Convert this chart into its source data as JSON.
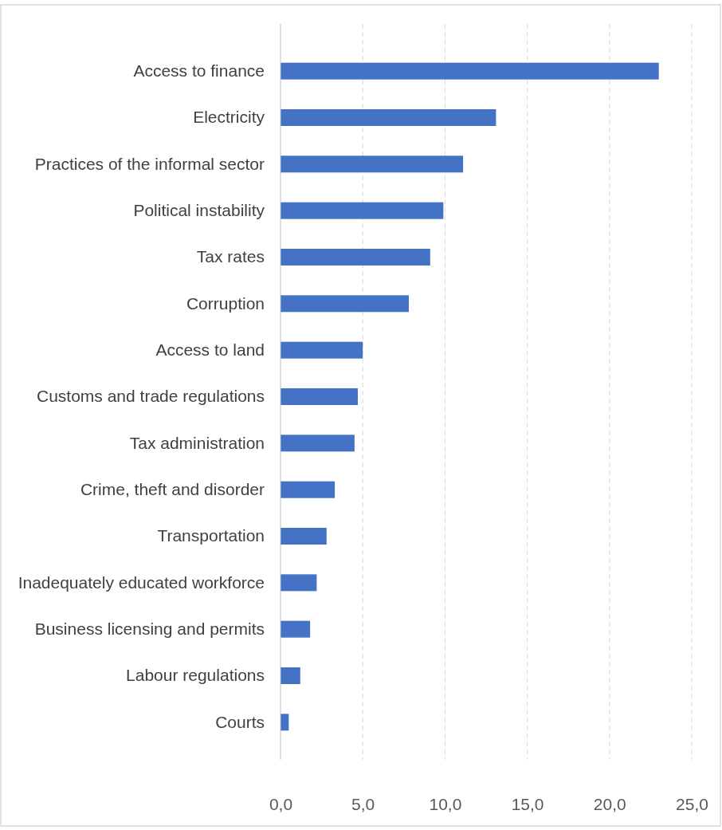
{
  "chart_data": {
    "type": "bar",
    "orientation": "horizontal",
    "categories": [
      "Access to finance",
      "Electricity",
      "Practices of the informal sector",
      "Political instability",
      "Tax rates",
      "Corruption",
      "Access to land",
      "Customs and trade regulations",
      "Tax administration",
      "Crime, theft and disorder",
      "Transportation",
      "Inadequately educated workforce",
      "Business licensing and permits",
      "Labour regulations",
      "Courts"
    ],
    "values": [
      23.0,
      13.1,
      11.1,
      9.9,
      9.1,
      7.8,
      5.0,
      4.7,
      4.5,
      3.3,
      2.8,
      2.2,
      1.8,
      1.2,
      0.5
    ],
    "color": "#4472c4",
    "xlim": [
      0,
      25
    ],
    "xticks": [
      {
        "value": 0,
        "label": "0,0"
      },
      {
        "value": 5,
        "label": "5,0"
      },
      {
        "value": 10,
        "label": "10,0"
      },
      {
        "value": 15,
        "label": "15,0"
      },
      {
        "value": 20,
        "label": "20,0"
      },
      {
        "value": 25,
        "label": "25,0"
      }
    ],
    "grid": "x"
  }
}
